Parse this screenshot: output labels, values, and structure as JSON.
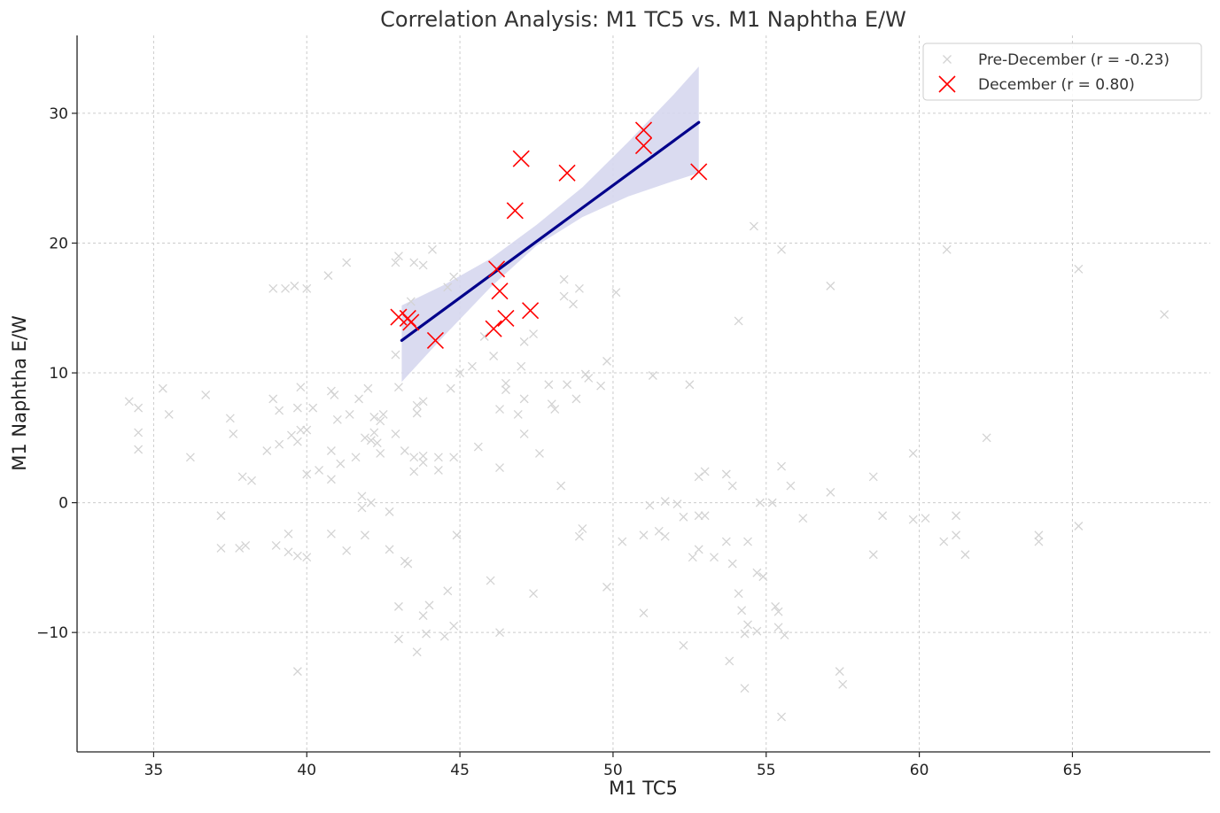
{
  "chart_data": {
    "type": "scatter",
    "title": "Correlation Analysis: M1 TC5 vs. M1 Naphtha E/W",
    "xlabel": "M1 TC5",
    "ylabel": "M1 Naphtha E/W",
    "xlim": [
      32.5,
      69.5
    ],
    "ylim": [
      -19.2,
      36.0
    ],
    "x_ticks": [
      35,
      40,
      45,
      50,
      55,
      60,
      65
    ],
    "y_ticks": [
      -10,
      0,
      10,
      20,
      30
    ],
    "x_tick_labels": [
      "35",
      "40",
      "45",
      "50",
      "55",
      "60",
      "65"
    ],
    "y_tick_labels": [
      "−10",
      "0",
      "10",
      "20",
      "30"
    ],
    "grid": true,
    "legend_position": "top-right",
    "colors": {
      "pre_december": "#d3d3d3",
      "december": "#ff0000",
      "regression_line": "#00008b",
      "confidence_band": "#d6d7ee"
    },
    "series": [
      {
        "name": "Pre-December (r = -0.23)",
        "marker": "x-small",
        "points": [
          [
            34.2,
            7.8
          ],
          [
            34.5,
            7.3
          ],
          [
            34.5,
            5.4
          ],
          [
            34.5,
            4.1
          ],
          [
            35.3,
            8.8
          ],
          [
            35.5,
            6.8
          ],
          [
            36.2,
            3.5
          ],
          [
            36.7,
            8.3
          ],
          [
            37.2,
            -1.0
          ],
          [
            37.2,
            -3.5
          ],
          [
            37.5,
            6.5
          ],
          [
            37.6,
            5.3
          ],
          [
            37.8,
            -3.5
          ],
          [
            37.9,
            2.0
          ],
          [
            38.0,
            -3.3
          ],
          [
            38.2,
            1.7
          ],
          [
            38.7,
            4.0
          ],
          [
            38.9,
            8.0
          ],
          [
            38.9,
            16.5
          ],
          [
            39.0,
            -3.3
          ],
          [
            39.1,
            7.1
          ],
          [
            39.1,
            4.5
          ],
          [
            39.3,
            16.5
          ],
          [
            39.4,
            -2.4
          ],
          [
            39.4,
            -3.8
          ],
          [
            39.5,
            5.2
          ],
          [
            39.6,
            16.7
          ],
          [
            39.7,
            -4.1
          ],
          [
            39.7,
            7.3
          ],
          [
            39.7,
            4.7
          ],
          [
            39.7,
            -13.0
          ],
          [
            39.8,
            8.9
          ],
          [
            39.8,
            5.6
          ],
          [
            40.0,
            2.2
          ],
          [
            40.0,
            5.6
          ],
          [
            40.0,
            -4.2
          ],
          [
            40.0,
            16.5
          ],
          [
            40.2,
            7.3
          ],
          [
            40.4,
            2.5
          ],
          [
            40.7,
            17.5
          ],
          [
            40.8,
            8.6
          ],
          [
            40.8,
            4.0
          ],
          [
            40.8,
            1.8
          ],
          [
            40.8,
            -2.4
          ],
          [
            40.9,
            8.3
          ],
          [
            41.0,
            6.4
          ],
          [
            41.1,
            3.0
          ],
          [
            41.3,
            -3.7
          ],
          [
            41.3,
            18.5
          ],
          [
            41.4,
            6.8
          ],
          [
            41.6,
            3.5
          ],
          [
            41.7,
            8.0
          ],
          [
            41.8,
            0.5
          ],
          [
            41.8,
            -0.4
          ],
          [
            41.9,
            -2.5
          ],
          [
            41.9,
            5.0
          ],
          [
            42.0,
            8.8
          ],
          [
            42.1,
            4.8
          ],
          [
            42.1,
            0.0
          ],
          [
            42.2,
            5.4
          ],
          [
            42.2,
            6.6
          ],
          [
            42.3,
            4.6
          ],
          [
            42.4,
            6.3
          ],
          [
            42.4,
            3.8
          ],
          [
            42.5,
            6.8
          ],
          [
            42.7,
            -0.7
          ],
          [
            42.7,
            -3.6
          ],
          [
            42.9,
            5.3
          ],
          [
            42.9,
            18.5
          ],
          [
            42.9,
            11.4
          ],
          [
            43.0,
            8.9
          ],
          [
            43.0,
            -8.0
          ],
          [
            43.0,
            -10.5
          ],
          [
            43.0,
            19.0
          ],
          [
            43.2,
            -4.5
          ],
          [
            43.2,
            4.0
          ],
          [
            43.3,
            -4.7
          ],
          [
            43.4,
            15.5
          ],
          [
            43.5,
            2.4
          ],
          [
            43.5,
            3.5
          ],
          [
            43.5,
            18.5
          ],
          [
            43.6,
            -11.5
          ],
          [
            43.6,
            6.9
          ],
          [
            43.6,
            7.5
          ],
          [
            43.8,
            18.3
          ],
          [
            43.8,
            -8.7
          ],
          [
            43.8,
            7.8
          ],
          [
            43.8,
            3.6
          ],
          [
            43.8,
            3.1
          ],
          [
            43.9,
            -10.1
          ],
          [
            44.0,
            -7.9
          ],
          [
            44.1,
            19.5
          ],
          [
            44.3,
            3.5
          ],
          [
            44.3,
            2.5
          ],
          [
            44.5,
            -10.3
          ],
          [
            44.6,
            -6.8
          ],
          [
            44.6,
            16.6
          ],
          [
            44.7,
            8.8
          ],
          [
            44.8,
            -9.5
          ],
          [
            44.8,
            17.4
          ],
          [
            44.8,
            3.5
          ],
          [
            44.9,
            -2.5
          ],
          [
            45.0,
            10.0
          ],
          [
            45.4,
            10.5
          ],
          [
            45.6,
            4.3
          ],
          [
            45.8,
            12.8
          ],
          [
            46.0,
            -6.0
          ],
          [
            46.1,
            11.3
          ],
          [
            46.3,
            2.7
          ],
          [
            46.3,
            7.2
          ],
          [
            46.3,
            -10.0
          ],
          [
            46.5,
            8.7
          ],
          [
            46.5,
            9.2
          ],
          [
            46.9,
            6.8
          ],
          [
            47.0,
            10.5
          ],
          [
            47.1,
            12.4
          ],
          [
            47.1,
            5.3
          ],
          [
            47.1,
            8.0
          ],
          [
            47.4,
            13.0
          ],
          [
            47.4,
            -7.0
          ],
          [
            47.6,
            3.8
          ],
          [
            47.9,
            9.1
          ],
          [
            48.0,
            7.6
          ],
          [
            48.1,
            7.2
          ],
          [
            48.3,
            1.3
          ],
          [
            48.4,
            17.2
          ],
          [
            48.4,
            15.9
          ],
          [
            48.5,
            9.1
          ],
          [
            48.7,
            15.3
          ],
          [
            48.8,
            8.0
          ],
          [
            48.9,
            16.5
          ],
          [
            48.9,
            -2.6
          ],
          [
            49.0,
            -2.0
          ],
          [
            49.1,
            9.9
          ],
          [
            49.2,
            9.6
          ],
          [
            49.6,
            9.0
          ],
          [
            49.8,
            -6.5
          ],
          [
            49.8,
            10.9
          ],
          [
            50.1,
            16.2
          ],
          [
            50.3,
            -3.0
          ],
          [
            51.0,
            -8.5
          ],
          [
            51.0,
            -2.5
          ],
          [
            51.2,
            -0.2
          ],
          [
            51.3,
            9.8
          ],
          [
            51.5,
            -2.2
          ],
          [
            51.7,
            0.1
          ],
          [
            51.7,
            -2.6
          ],
          [
            52.1,
            -0.1
          ],
          [
            52.3,
            -11.0
          ],
          [
            52.3,
            -1.1
          ],
          [
            52.5,
            9.1
          ],
          [
            52.6,
            -4.2
          ],
          [
            52.8,
            2.0
          ],
          [
            52.8,
            -1.0
          ],
          [
            52.8,
            -3.6
          ],
          [
            53.0,
            2.4
          ],
          [
            53.0,
            -1.0
          ],
          [
            53.3,
            -4.2
          ],
          [
            53.7,
            -3.0
          ],
          [
            53.7,
            2.2
          ],
          [
            53.8,
            -12.2
          ],
          [
            53.9,
            1.3
          ],
          [
            53.9,
            -4.7
          ],
          [
            54.1,
            14.0
          ],
          [
            54.1,
            -7.0
          ],
          [
            54.2,
            -8.3
          ],
          [
            54.3,
            -10.1
          ],
          [
            54.3,
            -14.3
          ],
          [
            54.4,
            -3.0
          ],
          [
            54.4,
            -9.4
          ],
          [
            54.6,
            21.3
          ],
          [
            54.7,
            -9.9
          ],
          [
            54.7,
            -5.4
          ],
          [
            54.8,
            0.0
          ],
          [
            54.9,
            -5.7
          ],
          [
            55.2,
            0.0
          ],
          [
            55.3,
            -8.0
          ],
          [
            55.4,
            -8.4
          ],
          [
            55.4,
            -9.6
          ],
          [
            55.5,
            2.8
          ],
          [
            55.5,
            19.5
          ],
          [
            55.5,
            -16.5
          ],
          [
            55.6,
            -10.2
          ],
          [
            55.8,
            1.3
          ],
          [
            56.2,
            -1.2
          ],
          [
            57.1,
            0.8
          ],
          [
            57.1,
            16.7
          ],
          [
            57.4,
            -13.0
          ],
          [
            57.5,
            -14.0
          ],
          [
            58.5,
            2.0
          ],
          [
            58.5,
            -4.0
          ],
          [
            58.8,
            -1.0
          ],
          [
            59.8,
            3.8
          ],
          [
            59.8,
            -1.3
          ],
          [
            60.2,
            -1.2
          ],
          [
            60.8,
            -3.0
          ],
          [
            60.9,
            19.5
          ],
          [
            61.2,
            -1.0
          ],
          [
            61.2,
            -2.5
          ],
          [
            61.5,
            -4.0
          ],
          [
            62.2,
            5.0
          ],
          [
            63.9,
            -2.5
          ],
          [
            63.9,
            -3.0
          ],
          [
            65.2,
            18.0
          ],
          [
            65.2,
            -1.8
          ],
          [
            68.0,
            14.5
          ]
        ]
      },
      {
        "name": "December (r = 0.80)",
        "marker": "x-large",
        "points": [
          [
            43.0,
            14.3
          ],
          [
            43.4,
            13.9
          ],
          [
            43.3,
            14.2
          ],
          [
            44.2,
            12.5
          ],
          [
            46.1,
            13.4
          ],
          [
            46.2,
            18.0
          ],
          [
            46.3,
            16.3
          ],
          [
            46.5,
            14.2
          ],
          [
            47.3,
            14.8
          ],
          [
            46.8,
            22.5
          ],
          [
            47.0,
            26.5
          ],
          [
            48.5,
            25.4
          ],
          [
            51.0,
            28.7
          ],
          [
            51.0,
            27.5
          ],
          [
            52.8,
            25.5
          ]
        ]
      }
    ],
    "regression_fit": {
      "x_range": [
        43.1,
        52.8
      ],
      "y_at_start": 12.5,
      "y_at_end": 29.3,
      "confidence_band": [
        {
          "x": 43.1,
          "lower": 9.3,
          "upper": 15.2
        },
        {
          "x": 44.5,
          "lower": 12.9,
          "upper": 16.8
        },
        {
          "x": 46.0,
          "lower": 16.6,
          "upper": 18.8
        },
        {
          "x": 47.5,
          "lower": 19.8,
          "upper": 21.4
        },
        {
          "x": 49.0,
          "lower": 22.0,
          "upper": 24.3
        },
        {
          "x": 50.5,
          "lower": 23.6,
          "upper": 27.8
        },
        {
          "x": 52.0,
          "lower": 24.8,
          "upper": 31.5
        },
        {
          "x": 52.8,
          "lower": 25.4,
          "upper": 33.6
        }
      ]
    }
  }
}
